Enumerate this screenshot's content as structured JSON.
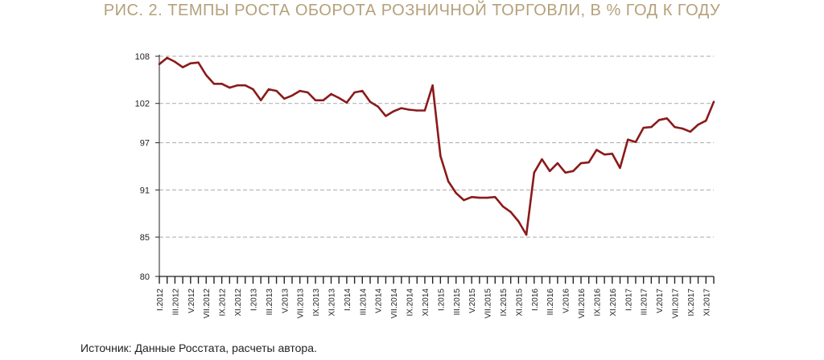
{
  "figure": {
    "title": "РИС. 2. ТЕМПЫ РОСТА ОБОРОТА РОЗНИЧНОЙ ТОРГОВЛИ, В % ГОД К ГОДУ",
    "source": "Источник: Данные Росстата, расчеты автора."
  },
  "colors": {
    "line": "#8b1a1a",
    "title": "#b5a07a",
    "grid": "#aaaaaa",
    "axis": "#222222"
  },
  "chart_data": {
    "type": "line",
    "title": "РИС. 2. ТЕМПЫ РОСТА ОБОРОТА РОЗНИЧНОЙ ТОРГОВЛИ, В % ГОД К ГОДУ",
    "xlabel": "",
    "ylabel": "",
    "ylim": [
      80,
      108
    ],
    "yticks": [
      80,
      85,
      91,
      97,
      102,
      108
    ],
    "grid": "horizontal dashed",
    "x_labels": [
      "I.2012",
      "III.2012",
      "V.2012",
      "VII.2012",
      "IX.2012",
      "XI.2012",
      "I.2013",
      "III.2013",
      "V.2013",
      "VII.2013",
      "IX.2013",
      "XI.2013",
      "I.2014",
      "III.2014",
      "V.2014",
      "VII.2014",
      "IX.2014",
      "XI.2014",
      "I.2015",
      "III.2015",
      "V.2015",
      "VII.2015",
      "IX.2015",
      "XI.2015",
      "I.2016",
      "III.2016",
      "V.2016",
      "VII.2016",
      "IX.2016",
      "XI.2016",
      "I.2017",
      "III.2017",
      "V.2017",
      "VII.2017",
      "IX.2017",
      "XI.2017"
    ],
    "x": [
      "I.2012",
      "II.2012",
      "III.2012",
      "IV.2012",
      "V.2012",
      "VI.2012",
      "VII.2012",
      "VIII.2012",
      "IX.2012",
      "X.2012",
      "XI.2012",
      "XII.2012",
      "I.2013",
      "II.2013",
      "III.2013",
      "IV.2013",
      "V.2013",
      "VI.2013",
      "VII.2013",
      "VIII.2013",
      "IX.2013",
      "X.2013",
      "XI.2013",
      "XII.2013",
      "I.2014",
      "II.2014",
      "III.2014",
      "IV.2014",
      "V.2014",
      "VI.2014",
      "VII.2014",
      "VIII.2014",
      "IX.2014",
      "X.2014",
      "XI.2014",
      "XII.2014",
      "I.2015",
      "II.2015",
      "III.2015",
      "IV.2015",
      "V.2015",
      "VI.2015",
      "VII.2015",
      "VIII.2015",
      "IX.2015",
      "X.2015",
      "XI.2015",
      "XII.2015",
      "I.2016",
      "II.2016",
      "III.2016",
      "IV.2016",
      "V.2016",
      "VI.2016",
      "VII.2016",
      "VIII.2016",
      "IX.2016",
      "X.2016",
      "XI.2016",
      "XII.2016",
      "I.2017",
      "II.2017",
      "III.2017",
      "IV.2017",
      "V.2017",
      "VI.2017",
      "VII.2017",
      "VIII.2017",
      "IX.2017",
      "X.2017",
      "XI.2017",
      "XII.2017"
    ],
    "series": [
      {
        "values": [
          107.0,
          107.8,
          107.3,
          106.6,
          107.1,
          107.2,
          105.6,
          104.5,
          104.5,
          104.0,
          104.3,
          104.3,
          103.8,
          102.4,
          103.8,
          103.6,
          102.6,
          103.0,
          103.6,
          103.4,
          102.4,
          102.4,
          103.2,
          102.7,
          102.1,
          103.4,
          103.6,
          102.2,
          101.6,
          100.4,
          101.0,
          101.4,
          101.2,
          101.1,
          101.1,
          104.3,
          95.3,
          92.1,
          90.6,
          89.7,
          90.1,
          90.0,
          90.0,
          90.1,
          88.9,
          88.2,
          87.0,
          85.3,
          93.2,
          94.9,
          93.4,
          94.4,
          93.2,
          93.4,
          94.4,
          94.5,
          96.1,
          95.5,
          95.6,
          93.8,
          97.4,
          97.1,
          98.9,
          99.0,
          99.9,
          100.1,
          99.0,
          98.8,
          98.4,
          99.3,
          99.8,
          102.2
        ]
      }
    ]
  }
}
